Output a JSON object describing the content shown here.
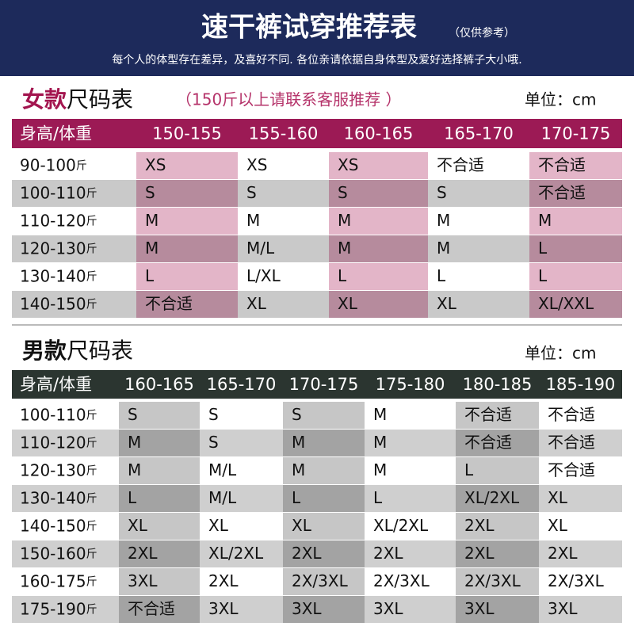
{
  "header": {
    "title": "速干裤试穿推荐表",
    "note": "（仅供参考）",
    "subtitle": "每个人的体型存在差异，及喜好不同. 各位亲请依据自身体型及爱好选择裤子大小哦."
  },
  "women": {
    "title_bold": "女款",
    "title_rest": "尺码表",
    "note": "（150斤以上请联系客服推荐 ）",
    "unit": "单位：cm",
    "weight_unit": "斤",
    "columns": [
      "身高/体重",
      "150-155",
      "155-160",
      "160-165",
      "165-170",
      "170-175"
    ],
    "rows": [
      {
        "weight": "90-100",
        "sizes": [
          "XS",
          "XS",
          "XS",
          "不合适",
          "不合适"
        ]
      },
      {
        "weight": "100-110",
        "sizes": [
          "S",
          "S",
          "S",
          "S",
          "不合适"
        ]
      },
      {
        "weight": "110-120",
        "sizes": [
          "M",
          "M",
          "M",
          "M",
          "M"
        ]
      },
      {
        "weight": "120-130",
        "sizes": [
          "M",
          "M/L",
          "M",
          "M",
          "L"
        ]
      },
      {
        "weight": "130-140",
        "sizes": [
          "L",
          "L/XL",
          "L",
          "L",
          "L"
        ]
      },
      {
        "weight": "140-150",
        "sizes": [
          "不合适",
          "XL",
          "XL",
          "XL",
          "XL/XXL"
        ]
      }
    ]
  },
  "men": {
    "title_bold": "男款",
    "title_rest": "尺码表",
    "unit": "单位：cm",
    "weight_unit": "斤",
    "columns": [
      "身高/体重",
      "160-165",
      "165-170",
      "170-175",
      "175-180",
      "180-185",
      "185-190"
    ],
    "rows": [
      {
        "weight": "100-110",
        "sizes": [
          "S",
          "S",
          "S",
          "M",
          "不合适",
          "不合适"
        ]
      },
      {
        "weight": "110-120",
        "sizes": [
          "M",
          "S",
          "M",
          "M",
          "不合适",
          "不合适"
        ]
      },
      {
        "weight": "120-130",
        "sizes": [
          "M",
          "M/L",
          "M",
          "M",
          "L",
          "不合适"
        ]
      },
      {
        "weight": "130-140",
        "sizes": [
          "L",
          "M/L",
          "L",
          "L",
          "XL/2XL",
          "XL"
        ]
      },
      {
        "weight": "140-150",
        "sizes": [
          "XL",
          "XL",
          "XL",
          "XL/2XL",
          "2XL",
          "XL"
        ]
      },
      {
        "weight": "150-160",
        "sizes": [
          "2XL",
          "XL/2XL",
          "2XL",
          "2XL",
          "2XL",
          "2XL"
        ]
      },
      {
        "weight": "160-175",
        "sizes": [
          "3XL",
          "2XL",
          "2X/3XL",
          "2X/3XL",
          "2X/3XL",
          "2X/3XL"
        ]
      },
      {
        "weight": "175-190",
        "sizes": [
          "不合适",
          "3XL",
          "3XL",
          "3XL",
          "3XL",
          "3XL"
        ]
      }
    ]
  }
}
